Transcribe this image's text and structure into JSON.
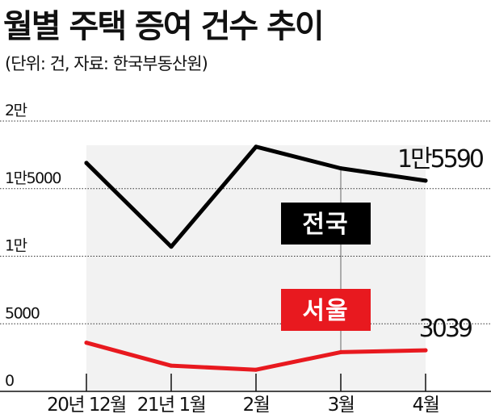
{
  "header": {
    "title": "월별 주택 증여 건수 추이",
    "subtitle": "(단위: 건, 자료: 한국부동산원)"
  },
  "colors": {
    "national": "#000000",
    "seoul": "#e8191f",
    "band": "#f2f2f2",
    "grid": "#333333"
  },
  "chart_data": {
    "type": "line",
    "title": "월별 주택 증여 건수 추이",
    "subtitle": "(단위: 건, 자료: 한국부동산원)",
    "categories": [
      "20년 12월",
      "21년 1월",
      "2월",
      "3월",
      "4월"
    ],
    "ylim": [
      0,
      20000
    ],
    "yticks": [
      0,
      5000,
      10000,
      15000,
      20000
    ],
    "ytick_labels": [
      "0",
      "5000",
      "1만",
      "1만5000",
      "2만"
    ],
    "grid": true,
    "series": [
      {
        "name": "전국",
        "values": [
          16900,
          10700,
          18100,
          16500,
          15590
        ],
        "end_label": "1만5590"
      },
      {
        "name": "서울",
        "values": [
          3600,
          1900,
          1600,
          2900,
          3039
        ],
        "end_label": "3039"
      }
    ]
  }
}
